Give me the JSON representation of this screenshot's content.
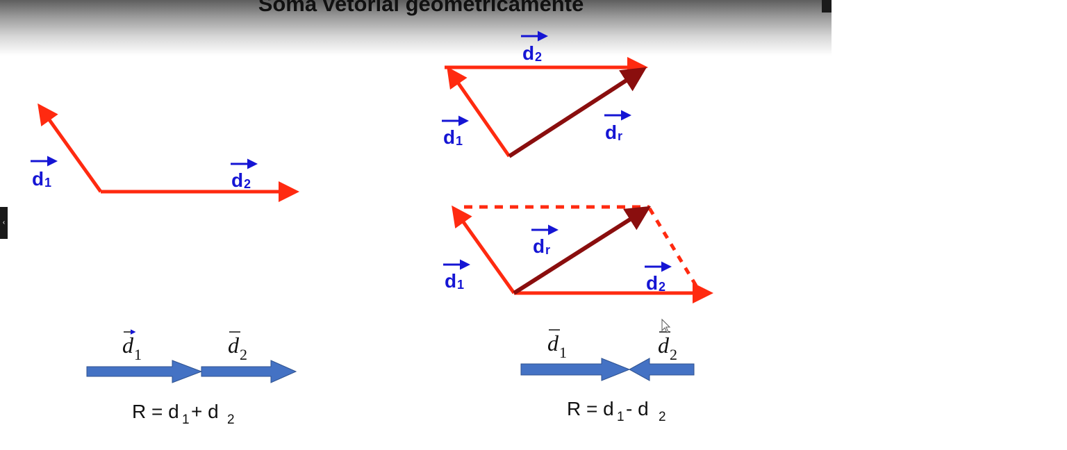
{
  "slide": {
    "title": "Soma vetorial geometricamente"
  },
  "labels": {
    "d_letter": "d",
    "sub_1": "1",
    "sub_2": "2",
    "sub_r": "r"
  },
  "formulas": {
    "sum": {
      "lhs": "R = d",
      "mid": " + d",
      "sub1": "1",
      "sub2": "2"
    },
    "difference": {
      "lhs": "R = d",
      "mid": " - d",
      "sub1": "1",
      "sub2": "2"
    }
  },
  "colors": {
    "component_vector": "#ff2a10",
    "resultant_vector": "#8a0e0e",
    "label": "#1515d4",
    "block_arrow": "#4472c4",
    "block_arrow_outline": "#2f528f"
  }
}
